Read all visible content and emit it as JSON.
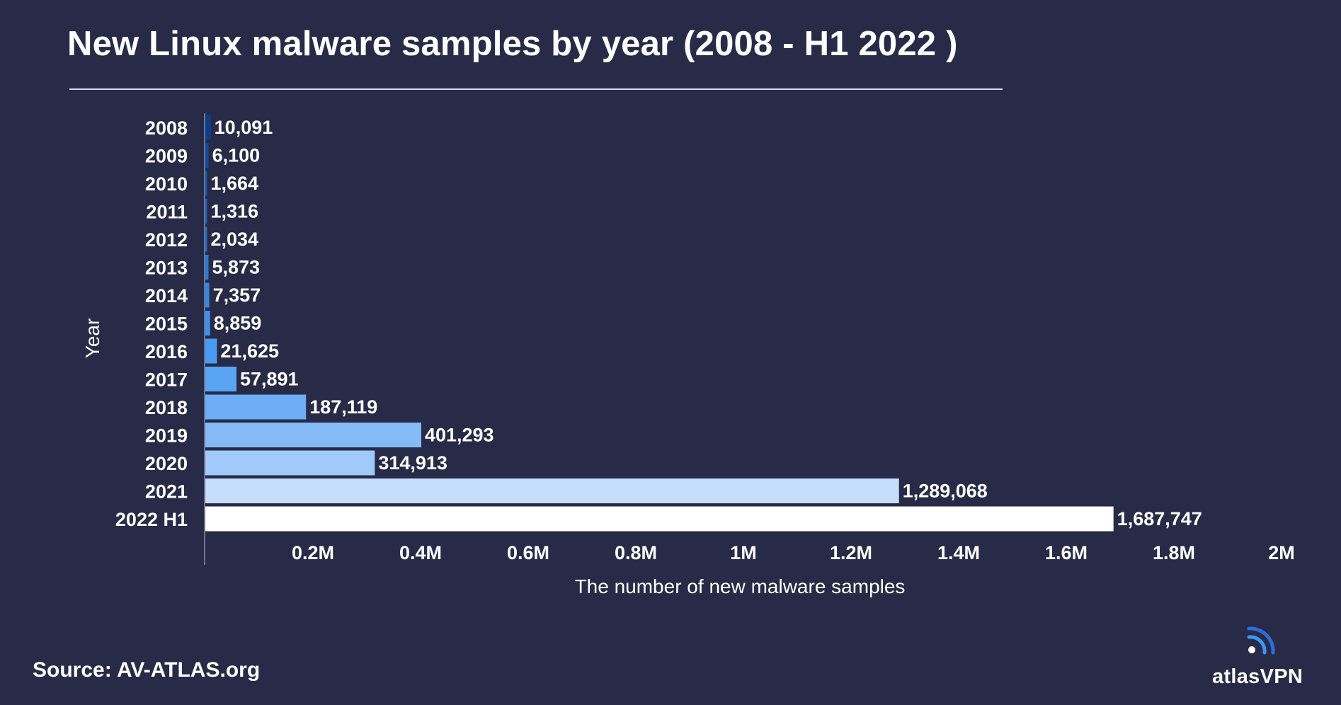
{
  "title": "New Linux malware samples by year (2008 - H1 2022 )",
  "source": {
    "label": "Source:",
    "value": "AV-ATLAS.org"
  },
  "logo": {
    "icon": "signal-wave-icon",
    "text": "atlasVPN"
  },
  "colors": {
    "background": "#282b47",
    "text": "#ffffff",
    "bars_dark": "#0b3f8a",
    "bars_mid": "#3d94f5",
    "bars_light": "#ffffff"
  },
  "chart_data": {
    "type": "bar",
    "orientation": "horizontal",
    "categories": [
      "2008",
      "2009",
      "2010",
      "2011",
      "2012",
      "2013",
      "2014",
      "2015",
      "2016",
      "2017",
      "2018",
      "2019",
      "2020",
      "2021",
      "2022 H1"
    ],
    "values": [
      10091,
      6100,
      1664,
      1316,
      2034,
      5873,
      7357,
      8859,
      21625,
      57891,
      187119,
      401293,
      314913,
      1289068,
      1687747
    ],
    "data_labels": [
      "10,091",
      "6,100",
      "1,664",
      "1,316",
      "2,034",
      "5,873",
      "7,357",
      "8,859",
      "21,625",
      "57,891",
      "187,119",
      "401,293",
      "314,913",
      "1,289,068",
      "1,687,747"
    ],
    "bar_colors": [
      "#0b3f8a",
      "#0f4a99",
      "#1456a8",
      "#1a62b8",
      "#206fc8",
      "#2a7bd6",
      "#3386e2",
      "#3d91ec",
      "#4a9af3",
      "#5aa4f5",
      "#6daef6",
      "#84bbf7",
      "#9fcaf9",
      "#c6defb",
      "#ffffff"
    ],
    "xlabel": "The number of new malware samples",
    "ylabel": "Year",
    "x_ticks": [
      200000,
      400000,
      600000,
      800000,
      1000000,
      1200000,
      1400000,
      1600000,
      1800000,
      2000000
    ],
    "x_tick_labels": [
      "0.2M",
      "0.4M",
      "0.6M",
      "0.8M",
      "1M",
      "1.2M",
      "1.4M",
      "1.6M",
      "1.8M",
      "2M"
    ],
    "xlim": [
      0,
      2000000
    ],
    "grid": false,
    "legend": "none"
  }
}
